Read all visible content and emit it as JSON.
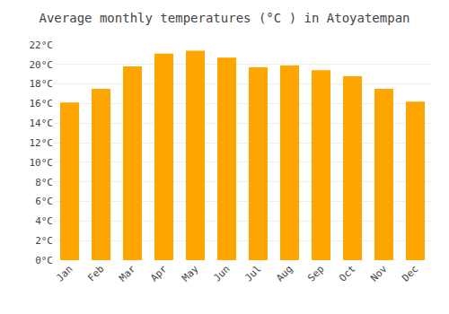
{
  "chart_data": {
    "type": "bar",
    "title": "Average monthly temperatures (°C ) in Atoyatempan",
    "categories": [
      "Jan",
      "Feb",
      "Mar",
      "Apr",
      "May",
      "Jun",
      "Jul",
      "Aug",
      "Sep",
      "Oct",
      "Nov",
      "Dec"
    ],
    "values": [
      16.1,
      17.5,
      19.8,
      21.1,
      21.4,
      20.7,
      19.7,
      19.9,
      19.4,
      18.8,
      17.5,
      16.2
    ],
    "color": "#FFA500",
    "ylim": [
      0,
      22
    ],
    "yticks": [
      {
        "value": 0,
        "label": "0°C"
      },
      {
        "value": 2,
        "label": "2°C"
      },
      {
        "value": 4,
        "label": "4°C"
      },
      {
        "value": 6,
        "label": "6°C"
      },
      {
        "value": 8,
        "label": "8°C"
      },
      {
        "value": 10,
        "label": "10°C"
      },
      {
        "value": 12,
        "label": "12°C"
      },
      {
        "value": 14,
        "label": "14°C"
      },
      {
        "value": 16,
        "label": "16°C"
      },
      {
        "value": 18,
        "label": "18°C"
      },
      {
        "value": 20,
        "label": "20°C"
      },
      {
        "value": 22,
        "label": "22°C"
      }
    ],
    "grid": true
  }
}
